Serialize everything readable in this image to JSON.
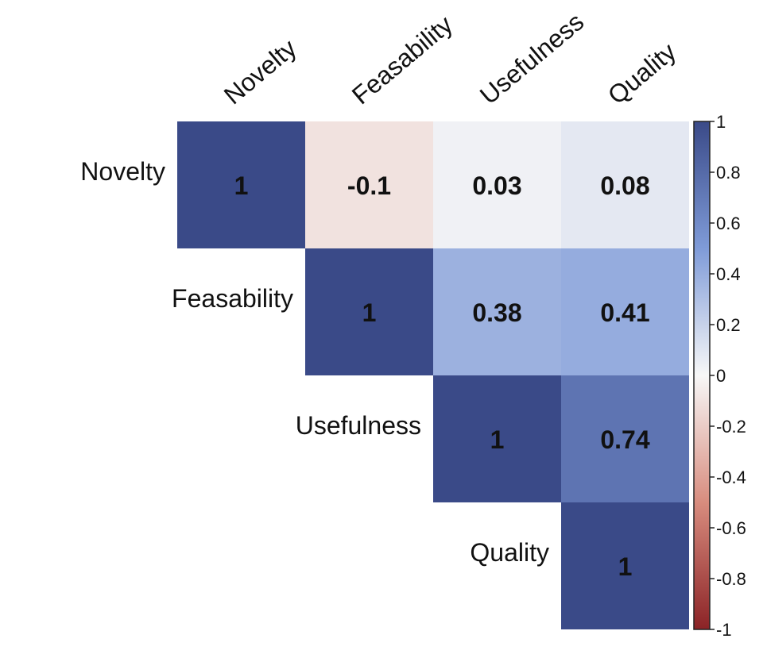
{
  "chart_data": {
    "type": "heatmap",
    "title": "",
    "xlabel": "",
    "ylabel": "",
    "variables": [
      "Novelty",
      "Feasability",
      "Usefulness",
      "Quality"
    ],
    "layout": "upper-triangle",
    "cells": [
      {
        "row": "Novelty",
        "col": "Novelty",
        "value": 1,
        "label": "1"
      },
      {
        "row": "Novelty",
        "col": "Feasability",
        "value": -0.1,
        "label": "-0.1"
      },
      {
        "row": "Novelty",
        "col": "Usefulness",
        "value": 0.03,
        "label": "0.03"
      },
      {
        "row": "Novelty",
        "col": "Quality",
        "value": 0.08,
        "label": "0.08"
      },
      {
        "row": "Feasability",
        "col": "Feasability",
        "value": 1,
        "label": "1"
      },
      {
        "row": "Feasability",
        "col": "Usefulness",
        "value": 0.38,
        "label": "0.38"
      },
      {
        "row": "Feasability",
        "col": "Quality",
        "value": 0.41,
        "label": "0.41"
      },
      {
        "row": "Usefulness",
        "col": "Usefulness",
        "value": 1,
        "label": "1"
      },
      {
        "row": "Usefulness",
        "col": "Quality",
        "value": 0.74,
        "label": "0.74"
      },
      {
        "row": "Quality",
        "col": "Quality",
        "value": 1,
        "label": "1"
      }
    ],
    "colorbar": {
      "range": [
        -1,
        1
      ],
      "ticks": [
        1,
        0.8,
        0.6,
        0.4,
        0.2,
        0,
        -0.2,
        -0.4,
        -0.6,
        -0.8,
        -1
      ],
      "tick_labels": [
        "1",
        "0.8",
        "0.6",
        "0.4",
        "0.2",
        "0",
        "-0.2",
        "-0.4",
        "-0.6",
        "-0.8",
        "-1"
      ],
      "colors": {
        "low": "#8b2326",
        "mid_low": "#d88c7e",
        "mid": "#f7f7f7",
        "mid_high": "#7f9bd8",
        "high": "#3a4a88"
      }
    },
    "grid": false,
    "legend": "colorbar-right"
  }
}
